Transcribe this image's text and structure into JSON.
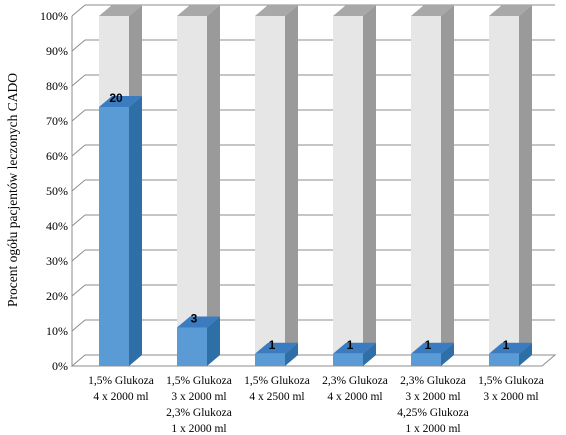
{
  "chart_data": {
    "type": "bar",
    "stacked": true,
    "percent": true,
    "three_d": true,
    "ylabel": "Procent ogółu pacjentów leczonych CADO",
    "ylim": [
      0,
      100
    ],
    "y_ticks": [
      "0%",
      "10%",
      "20%",
      "30%",
      "40%",
      "50%",
      "60%",
      "70%",
      "80%",
      "90%",
      "100%"
    ],
    "grid": true,
    "categories": [
      [
        "1,5% Glukoza",
        "4 x 2000 ml"
      ],
      [
        "1,5% Glukoza",
        "3 x 2000 ml",
        "2,3% Glukoza",
        "1 x 2000 ml"
      ],
      [
        "1,5% Glukoza",
        "4 x 2500 ml"
      ],
      [
        "2,3% Glukoza",
        "4 x 2000 ml"
      ],
      [
        "2,3% Glukoza",
        "3 x 2000 ml",
        "4,25% Glukoza",
        "1 x 2000 ml"
      ],
      [
        "1,5% Glukoza",
        "3 x 2000 ml"
      ]
    ],
    "values": [
      74,
      11,
      3.5,
      3.5,
      3.5,
      3.5
    ],
    "data_labels": [
      "20",
      "3",
      "1",
      "1",
      "1",
      "1"
    ],
    "colors": {
      "bar_front": "#5b9bd5",
      "bar_side": "#2f6fa8",
      "bar_top": "#3b7cc0",
      "rest_front": "#e6e6e6",
      "rest_side": "#9a9a9a",
      "rest_top": "#a8a8a8"
    }
  }
}
